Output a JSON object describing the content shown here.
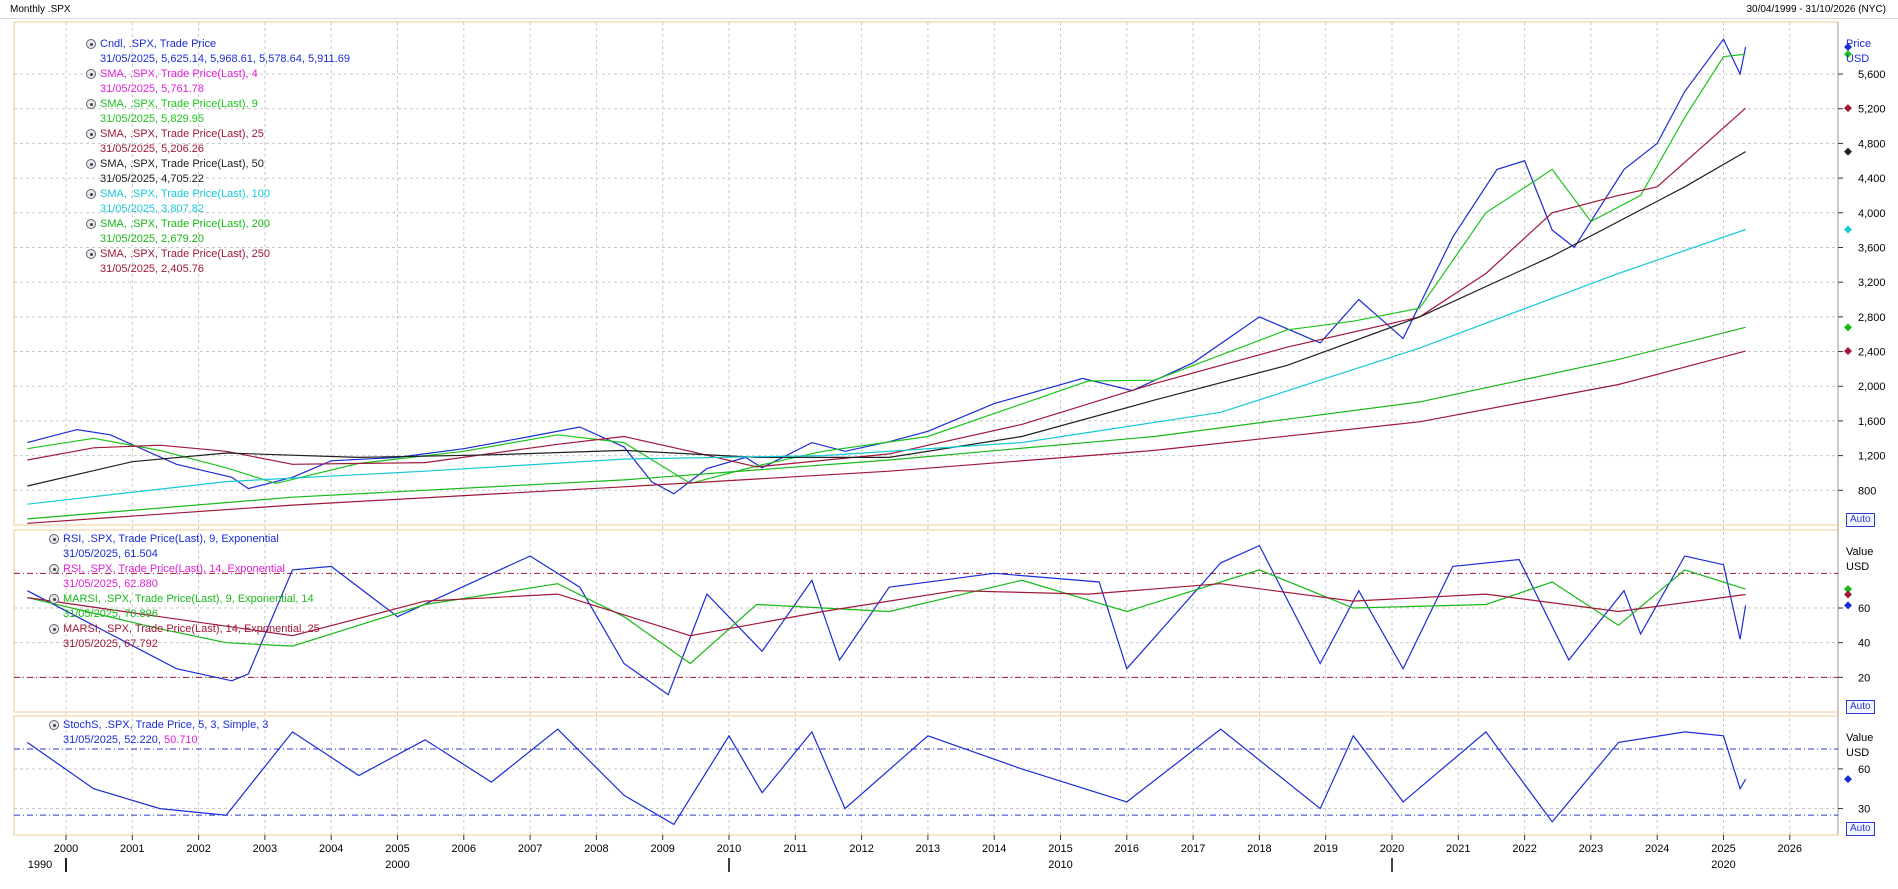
{
  "header": {
    "title": "Monthly .SPX",
    "date_range": "30/04/1999 - 31/10/2026 (NYC)"
  },
  "price_panel": {
    "unit_labels": [
      "Price",
      "USD"
    ],
    "auto_label": "Auto",
    "legend": [
      {
        "name": "Cndl, .SPX, Trade Price",
        "values": "31/05/2025, 5,625.14, 5,968.61, 5,578.64, 5,911.69",
        "color": "#1a2cd4"
      },
      {
        "name": "SMA, .SPX, Trade Price(Last),  4",
        "values": "31/05/2025, 5,761.78",
        "color": "#e020d8"
      },
      {
        "name": "SMA, .SPX, Trade Price(Last),  9",
        "values": "31/05/2025, 5,829.95",
        "color": "#1cc41c"
      },
      {
        "name": "SMA, .SPX, Trade Price(Last),  25",
        "values": "31/05/2025, 5,206.26",
        "color": "#a01838"
      },
      {
        "name": "SMA, .SPX, Trade Price(Last),  50",
        "values": "31/05/2025, 4,705.22",
        "color": "#202020"
      },
      {
        "name": "SMA, .SPX, Trade Price(Last),  100",
        "values": "31/05/2025, 3,807.82",
        "color": "#18c8d8"
      },
      {
        "name": "SMA, .SPX, Trade Price(Last),  200",
        "values": "31/05/2025, 2,679.20",
        "color": "#18b818"
      },
      {
        "name": "SMA, .SPX, Trade Price(Last),  250",
        "values": "31/05/2025, 2,405.76",
        "color": "#a01838"
      }
    ]
  },
  "rsi_panel": {
    "unit_labels": [
      "Value",
      "USD"
    ],
    "auto_label": "Auto",
    "legend": [
      {
        "name": "RSI, .SPX, Trade Price(Last),  9, Exponential",
        "values": "31/05/2025, 61.504",
        "color": "#1a2cd4"
      },
      {
        "name": "RSI, .SPX, Trade Price(Last),  14, Exponential",
        "values": "31/05/2025, 62.880",
        "color": "#e020d8"
      },
      {
        "name": "MARSI, .SPX, Trade Price(Last),  9, Exponential, 14",
        "values": "31/05/2025, 70.896",
        "color": "#18b818"
      },
      {
        "name": "MARSI, .SPX, Trade Price(Last),  14, Exponential, 25",
        "values": "31/05/2025, 67.792",
        "color": "#a01838"
      }
    ]
  },
  "stoch_panel": {
    "unit_labels": [
      "Value",
      "USD"
    ],
    "auto_label": "Auto",
    "legend_name": "StochS, .SPX, Trade Price,  5, 3, Simple, 3",
    "legend_date": "31/05/2025,",
    "legend_v1": "52.220,",
    "legend_v2": "50.710",
    "colors": {
      "k": "#1a2cd4",
      "d": "#e020d8"
    }
  },
  "x_axis": {
    "year_labels": [
      "2000",
      "2001",
      "2002",
      "2003",
      "2004",
      "2005",
      "2006",
      "2007",
      "2008",
      "2009",
      "2010",
      "2011",
      "2012",
      "2013",
      "2014",
      "2015",
      "2016",
      "2017",
      "2018",
      "2019",
      "2020",
      "2021",
      "2022",
      "2023",
      "2024",
      "2025",
      "2026"
    ],
    "decade_labels": [
      "1990",
      "2000",
      "2010",
      "2020"
    ]
  },
  "chart_data": [
    {
      "type": "line",
      "title": "Monthly .SPX",
      "ylabel": "Price USD",
      "y_ticks": [
        800,
        1200,
        1600,
        2000,
        2400,
        2800,
        3200,
        3600,
        4000,
        4400,
        4800,
        5200,
        5600
      ],
      "ylim": [
        400,
        6200
      ],
      "xlim": [
        "1999-04",
        "2026-10"
      ],
      "grid": true,
      "series": [
        {
          "name": "Cndl, .SPX, Trade Price",
          "x": [
            "1999-06",
            "2000-03",
            "2000-09",
            "2001-09",
            "2002-07",
            "2002-10",
            "2003-06",
            "2004-01",
            "2005-01",
            "2006-01",
            "2007-01",
            "2007-10",
            "2008-06",
            "2008-11",
            "2009-03",
            "2009-09",
            "2010-04",
            "2010-07",
            "2011-04",
            "2011-10",
            "2012-06",
            "2013-01",
            "2014-01",
            "2015-05",
            "2016-02",
            "2017-01",
            "2018-01",
            "2018-12",
            "2019-07",
            "2020-03",
            "2020-12",
            "2021-08",
            "2022-01",
            "2022-06",
            "2022-10",
            "2023-07",
            "2024-01",
            "2024-06",
            "2025-01",
            "2025-04",
            "2025-05"
          ],
          "values": [
            1350,
            1500,
            1440,
            1100,
            950,
            820,
            950,
            1140,
            1180,
            1280,
            1420,
            1530,
            1300,
            900,
            760,
            1050,
            1180,
            1060,
            1350,
            1250,
            1360,
            1480,
            1800,
            2090,
            1950,
            2270,
            2800,
            2500,
            3000,
            2550,
            3720,
            4500,
            4600,
            3800,
            3600,
            4500,
            4800,
            5400,
            6000,
            5600,
            5911.69
          ]
        },
        {
          "name": "SMA, .SPX, Trade Price(Last),  9",
          "x": [
            "1999-06",
            "2000-06",
            "2001-06",
            "2002-06",
            "2003-03",
            "2004-06",
            "2006-01",
            "2007-06",
            "2008-06",
            "2009-06",
            "2010-06",
            "2011-06",
            "2013-01",
            "2015-06",
            "2016-06",
            "2018-06",
            "2019-06",
            "2020-06",
            "2021-06",
            "2022-06",
            "2023-01",
            "2023-10",
            "2024-06",
            "2025-01",
            "2025-05"
          ],
          "values": [
            1280,
            1400,
            1260,
            1060,
            880,
            1110,
            1250,
            1440,
            1350,
            880,
            1080,
            1250,
            1420,
            2060,
            2070,
            2650,
            2750,
            2900,
            4000,
            4500,
            3900,
            4200,
            5100,
            5800,
            5829.95
          ]
        },
        {
          "name": "SMA, .SPX, Trade Price(Last),  25",
          "x": [
            "1999-06",
            "2000-06",
            "2001-06",
            "2002-06",
            "2003-06",
            "2005-06",
            "2007-06",
            "2008-06",
            "2009-06",
            "2010-06",
            "2012-06",
            "2014-06",
            "2016-06",
            "2018-06",
            "2020-06",
            "2021-06",
            "2022-06",
            "2023-06",
            "2024-01",
            "2025-05"
          ],
          "values": [
            1150,
            1290,
            1320,
            1250,
            1100,
            1120,
            1330,
            1420,
            1250,
            1070,
            1220,
            1560,
            2030,
            2450,
            2800,
            3300,
            4000,
            4200,
            4300,
            5206.26
          ]
        },
        {
          "name": "SMA, .SPX, Trade Price(Last),  50",
          "x": [
            "1999-06",
            "2001-01",
            "2002-06",
            "2004-06",
            "2006-06",
            "2008-06",
            "2010-06",
            "2012-06",
            "2014-06",
            "2016-06",
            "2018-06",
            "2020-06",
            "2022-06",
            "2024-06",
            "2025-05"
          ],
          "values": [
            850,
            1130,
            1230,
            1180,
            1210,
            1260,
            1180,
            1180,
            1420,
            1840,
            2240,
            2800,
            3500,
            4300,
            4705.22
          ]
        },
        {
          "name": "SMA, .SPX, Trade Price(Last),  100",
          "x": [
            "1999-06",
            "2002-06",
            "2005-06",
            "2008-06",
            "2011-06",
            "2014-06",
            "2017-06",
            "2020-06",
            "2023-06",
            "2025-05"
          ],
          "values": [
            640,
            900,
            1020,
            1160,
            1200,
            1350,
            1700,
            2440,
            3300,
            3807.82
          ]
        },
        {
          "name": "SMA, .SPX, Trade Price(Last),  200",
          "x": [
            "1999-06",
            "2003-06",
            "2008-06",
            "2012-06",
            "2016-06",
            "2020-06",
            "2023-06",
            "2025-05"
          ],
          "values": [
            470,
            720,
            920,
            1150,
            1420,
            1820,
            2310,
            2679.2
          ]
        },
        {
          "name": "SMA, .SPX, Trade Price(Last),  250",
          "x": [
            "1999-06",
            "2003-06",
            "2008-06",
            "2012-06",
            "2016-06",
            "2020-06",
            "2023-06",
            "2025-05"
          ],
          "values": [
            420,
            630,
            840,
            1020,
            1260,
            1590,
            2020,
            2405.76
          ]
        }
      ]
    },
    {
      "type": "line",
      "title": "RSI",
      "ylabel": "Value USD",
      "y_ticks": [
        20,
        40,
        60
      ],
      "ylim": [
        0,
        105
      ],
      "reference_lines": [
        20,
        80
      ],
      "grid": true,
      "series": [
        {
          "name": "RSI, .SPX, Trade Price(Last),  9, Exponential",
          "x": [
            "1999-06",
            "2000-03",
            "2000-09",
            "2001-09",
            "2002-07",
            "2002-10",
            "2003-06",
            "2004-01",
            "2005-01",
            "2007-01",
            "2007-10",
            "2008-06",
            "2009-02",
            "2009-09",
            "2010-07",
            "2011-04",
            "2011-09",
            "2012-06",
            "2014-01",
            "2015-08",
            "2016-01",
            "2017-06",
            "2018-01",
            "2018-12",
            "2019-07",
            "2020-03",
            "2020-12",
            "2021-12",
            "2022-09",
            "2023-07",
            "2023-10",
            "2024-06",
            "2025-01",
            "2025-04",
            "2025-05"
          ],
          "values": [
            70,
            55,
            45,
            25,
            18,
            22,
            82,
            84,
            55,
            90,
            72,
            28,
            10,
            68,
            35,
            76,
            30,
            72,
            80,
            75,
            25,
            86,
            96,
            28,
            70,
            25,
            84,
            88,
            30,
            70,
            45,
            90,
            85,
            42,
            61.504
          ]
        },
        {
          "name": "MARSI, .SPX, Trade Price(Last),  9, Exponential, 14",
          "x": [
            "1999-06",
            "2001-06",
            "2002-06",
            "2003-06",
            "2005-06",
            "2007-06",
            "2008-06",
            "2009-06",
            "2010-06",
            "2012-06",
            "2014-06",
            "2016-01",
            "2018-01",
            "2019-06",
            "2021-06",
            "2022-06",
            "2023-06",
            "2024-06",
            "2025-05"
          ],
          "values": [
            66,
            48,
            40,
            38,
            62,
            74,
            55,
            28,
            62,
            58,
            76,
            58,
            82,
            60,
            62,
            75,
            50,
            82,
            70.896
          ]
        },
        {
          "name": "MARSI, .SPX, Trade Price(Last),  14, Exponential, 25",
          "x": [
            "1999-06",
            "2001-06",
            "2003-06",
            "2005-06",
            "2007-06",
            "2009-06",
            "2011-06",
            "2013-06",
            "2015-06",
            "2017-06",
            "2019-06",
            "2021-06",
            "2023-06",
            "2025-05"
          ],
          "values": [
            66,
            55,
            44,
            64,
            68,
            44,
            58,
            70,
            68,
            74,
            64,
            68,
            58,
            67.792
          ]
        }
      ]
    },
    {
      "type": "line",
      "title": "StochS",
      "ylabel": "Value USD",
      "y_ticks": [
        30,
        60
      ],
      "ylim": [
        10,
        100
      ],
      "reference_lines": [
        25,
        75
      ],
      "grid": true,
      "series": [
        {
          "name": "StochS, .SPX, Trade Price,  5, 3, Simple, 3",
          "x": [
            "1999-06",
            "2000-06",
            "2001-06",
            "2002-06",
            "2003-06",
            "2004-06",
            "2005-06",
            "2006-06",
            "2007-06",
            "2008-06",
            "2009-03",
            "2010-01",
            "2010-07",
            "2011-04",
            "2011-10",
            "2013-01",
            "2014-06",
            "2016-01",
            "2017-06",
            "2018-12",
            "2019-06",
            "2020-03",
            "2021-06",
            "2022-06",
            "2023-06",
            "2024-06",
            "2025-01",
            "2025-04",
            "2025-05"
          ],
          "values": [
            80,
            45,
            30,
            25,
            88,
            55,
            82,
            50,
            90,
            40,
            18,
            85,
            42,
            88,
            30,
            85,
            60,
            35,
            90,
            30,
            85,
            35,
            88,
            20,
            80,
            88,
            85,
            45,
            52.22
          ]
        }
      ]
    }
  ]
}
